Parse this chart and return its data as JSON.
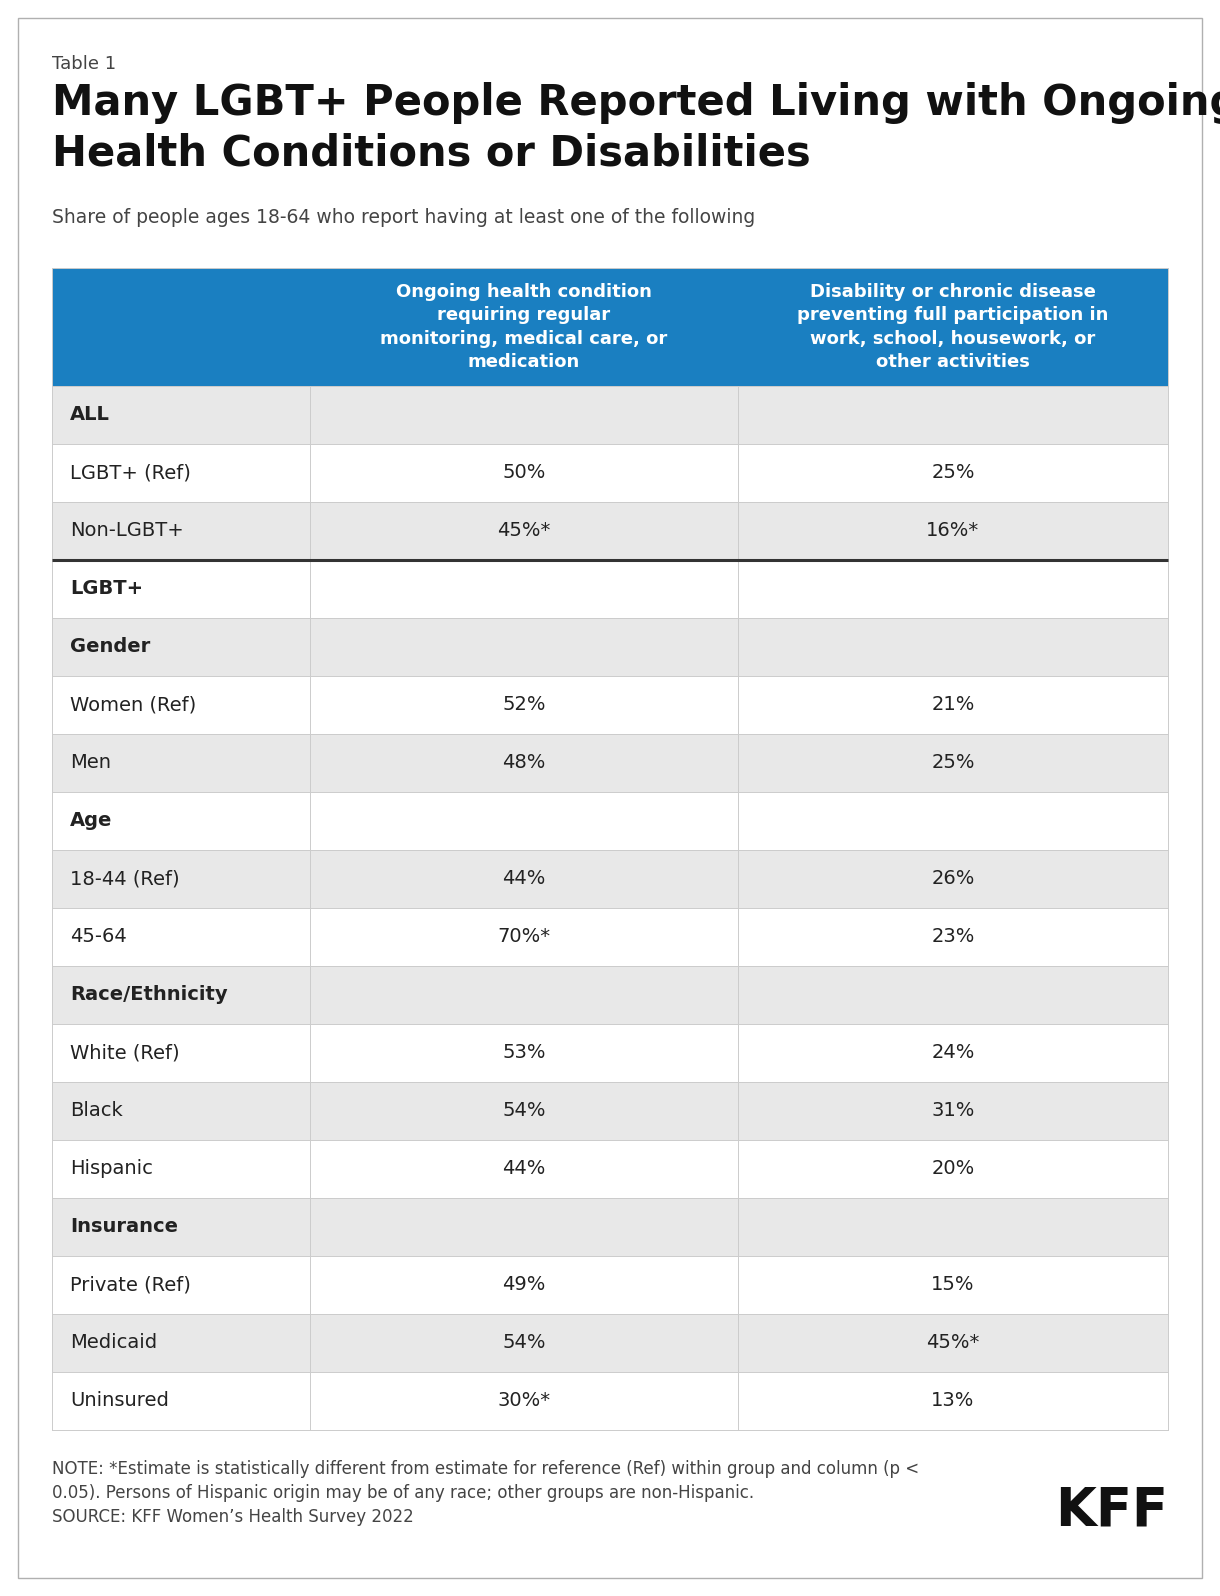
{
  "table_label": "Table 1",
  "title_line1": "Many LGBT+ People Reported Living with Ongoing",
  "title_line2": "Health Conditions or Disabilities",
  "subtitle": "Share of people ages 18-64 who report having at least one of the following",
  "col1_header": "Ongoing health condition\nrequiring regular\nmonitoring, medical care, or\nmedication",
  "col2_header": "Disability or chronic disease\npreventing full participation in\nwork, school, housework, or\nother activities",
  "header_bg": "#1a7fc1",
  "header_text_color": "#ffffff",
  "rows": [
    {
      "label": "ALL",
      "col1": "",
      "col2": "",
      "is_section": true,
      "bold": true,
      "bg": "#e8e8e8",
      "thick_top": false
    },
    {
      "label": "LGBT+ (Ref)",
      "col1": "50%",
      "col2": "25%",
      "is_section": false,
      "bold": false,
      "bg": "#ffffff",
      "thick_top": false
    },
    {
      "label": "Non-LGBT+",
      "col1": "45%*",
      "col2": "16%*",
      "is_section": false,
      "bold": false,
      "bg": "#e8e8e8",
      "thick_top": false
    },
    {
      "label": "LGBT+",
      "col1": "",
      "col2": "",
      "is_section": true,
      "bold": true,
      "bg": "#ffffff",
      "thick_top": true
    },
    {
      "label": "Gender",
      "col1": "",
      "col2": "",
      "is_section": true,
      "bold": true,
      "bg": "#e8e8e8",
      "thick_top": false
    },
    {
      "label": "Women (Ref)",
      "col1": "52%",
      "col2": "21%",
      "is_section": false,
      "bold": false,
      "bg": "#ffffff",
      "thick_top": false
    },
    {
      "label": "Men",
      "col1": "48%",
      "col2": "25%",
      "is_section": false,
      "bold": false,
      "bg": "#e8e8e8",
      "thick_top": false
    },
    {
      "label": "Age",
      "col1": "",
      "col2": "",
      "is_section": true,
      "bold": true,
      "bg": "#ffffff",
      "thick_top": false
    },
    {
      "label": "18-44 (Ref)",
      "col1": "44%",
      "col2": "26%",
      "is_section": false,
      "bold": false,
      "bg": "#e8e8e8",
      "thick_top": false
    },
    {
      "label": "45-64",
      "col1": "70%*",
      "col2": "23%",
      "is_section": false,
      "bold": false,
      "bg": "#ffffff",
      "thick_top": false
    },
    {
      "label": "Race/Ethnicity",
      "col1": "",
      "col2": "",
      "is_section": true,
      "bold": true,
      "bg": "#e8e8e8",
      "thick_top": false
    },
    {
      "label": "White (Ref)",
      "col1": "53%",
      "col2": "24%",
      "is_section": false,
      "bold": false,
      "bg": "#ffffff",
      "thick_top": false
    },
    {
      "label": "Black",
      "col1": "54%",
      "col2": "31%",
      "is_section": false,
      "bold": false,
      "bg": "#e8e8e8",
      "thick_top": false
    },
    {
      "label": "Hispanic",
      "col1": "44%",
      "col2": "20%",
      "is_section": false,
      "bold": false,
      "bg": "#ffffff",
      "thick_top": false
    },
    {
      "label": "Insurance",
      "col1": "",
      "col2": "",
      "is_section": true,
      "bold": true,
      "bg": "#e8e8e8",
      "thick_top": false
    },
    {
      "label": "Private (Ref)",
      "col1": "49%",
      "col2": "15%",
      "is_section": false,
      "bold": false,
      "bg": "#ffffff",
      "thick_top": false
    },
    {
      "label": "Medicaid",
      "col1": "54%",
      "col2": "45%*",
      "is_section": false,
      "bold": false,
      "bg": "#e8e8e8",
      "thick_top": false
    },
    {
      "label": "Uninsured",
      "col1": "30%*",
      "col2": "13%",
      "is_section": false,
      "bold": false,
      "bg": "#ffffff",
      "thick_top": false
    }
  ],
  "note_line1": "NOTE: *Estimate is statistically different from estimate for reference (Ref) within group and column (p <",
  "note_line2": "0.05). Persons of Hispanic origin may be of any race; other groups are non-Hispanic.",
  "note_line3": "SOURCE: KFF Women’s Health Survey 2022",
  "kff_logo": "KFF",
  "background_color": "#ffffff",
  "text_color": "#222222"
}
